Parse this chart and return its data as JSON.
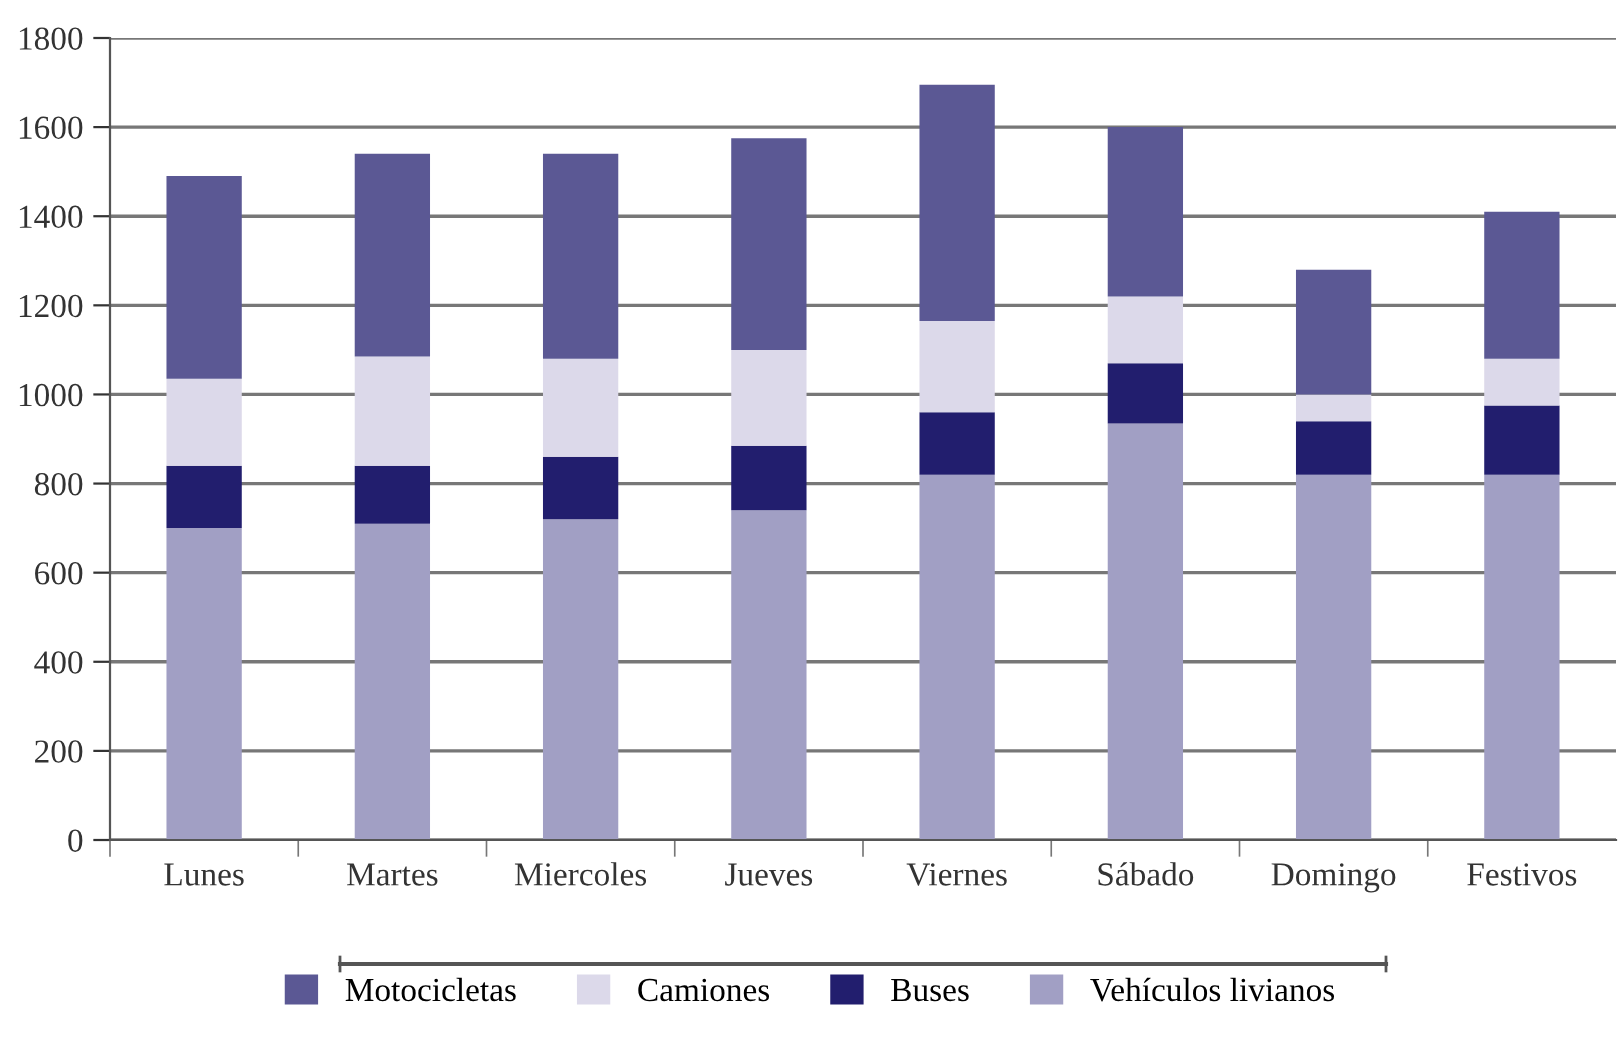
{
  "chart_data": {
    "type": "bar",
    "stacked": true,
    "categories": [
      "Lunes",
      "Martes",
      "Miercoles",
      "Jueves",
      "Viernes",
      "Sábado",
      "Domingo",
      "Festivos"
    ],
    "series": [
      {
        "name": "Vehículos livianos",
        "color": "#a19fc4",
        "values": [
          700,
          710,
          720,
          740,
          820,
          935,
          820,
          820
        ]
      },
      {
        "name": "Buses",
        "color": "#221e6e",
        "values": [
          140,
          130,
          140,
          145,
          140,
          135,
          120,
          155
        ]
      },
      {
        "name": "Camiones",
        "color": "#dcd9ea",
        "values": [
          195,
          245,
          220,
          215,
          205,
          150,
          60,
          105
        ]
      },
      {
        "name": "Motocicletas",
        "color": "#5b5894",
        "values": [
          455,
          455,
          460,
          475,
          530,
          380,
          280,
          330
        ]
      }
    ],
    "ylim": [
      0,
      1800
    ],
    "yticks": [
      0,
      200,
      400,
      600,
      800,
      1000,
      1200,
      1400,
      1600,
      1800
    ],
    "grid": "y",
    "legend": "bottom"
  }
}
